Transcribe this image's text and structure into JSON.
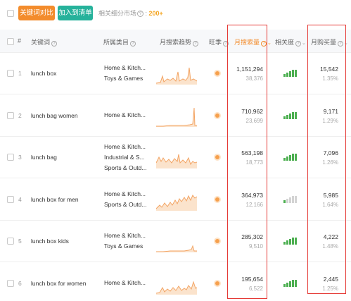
{
  "toolbar": {
    "compare_label": "关键词对比",
    "add_label": "加入到清单",
    "market_label": "相关细分市场",
    "market_count": "200+"
  },
  "columns": {
    "index": "#",
    "keyword": "关键词",
    "category": "所属类目",
    "trend": "月搜索趋势",
    "seller": "旺季",
    "search_volume": "月搜索量",
    "relevance": "相关度",
    "purchases": "月购买量"
  },
  "rows": [
    {
      "index": "1",
      "keyword": "lunch box",
      "categories": [
        "Home & Kitch...",
        "Toys & Games"
      ],
      "search_volume": "1,151,294",
      "search_sub": "38,376",
      "purchases": "15,542",
      "purchase_rate": "1.35%",
      "relevance": 5
    },
    {
      "index": "2",
      "keyword": "lunch bag women",
      "categories": [
        "Home & Kitch..."
      ],
      "search_volume": "710,962",
      "search_sub": "23,699",
      "purchases": "9,171",
      "purchase_rate": "1.29%",
      "relevance": 5
    },
    {
      "index": "3",
      "keyword": "lunch bag",
      "categories": [
        "Home & Kitch...",
        "Industrial & S...",
        "Sports & Outd..."
      ],
      "search_volume": "563,198",
      "search_sub": "18,773",
      "purchases": "7,096",
      "purchase_rate": "1.26%",
      "relevance": 5
    },
    {
      "index": "4",
      "keyword": "lunch box for men",
      "categories": [
        "Home & Kitch...",
        "Sports & Outd..."
      ],
      "search_volume": "364,973",
      "search_sub": "12,166",
      "purchases": "5,985",
      "purchase_rate": "1.64%",
      "relevance": 1
    },
    {
      "index": "5",
      "keyword": "lunch box kids",
      "categories": [
        "Home & Kitch...",
        "Toys & Games"
      ],
      "search_volume": "285,302",
      "search_sub": "9,510",
      "purchases": "4,222",
      "purchase_rate": "1.48%",
      "relevance": 5
    },
    {
      "index": "6",
      "keyword": "lunch box for women",
      "categories": [
        "Home & Kitch..."
      ],
      "search_volume": "195,654",
      "search_sub": "6,522",
      "purchases": "2,445",
      "purchase_rate": "1.25%",
      "relevance": 5
    }
  ],
  "colors": {
    "accent_orange": "#f38c2c",
    "accent_teal": "#26b29b",
    "highlight_red": "#e53935",
    "relevance_green": "#4caf50"
  }
}
